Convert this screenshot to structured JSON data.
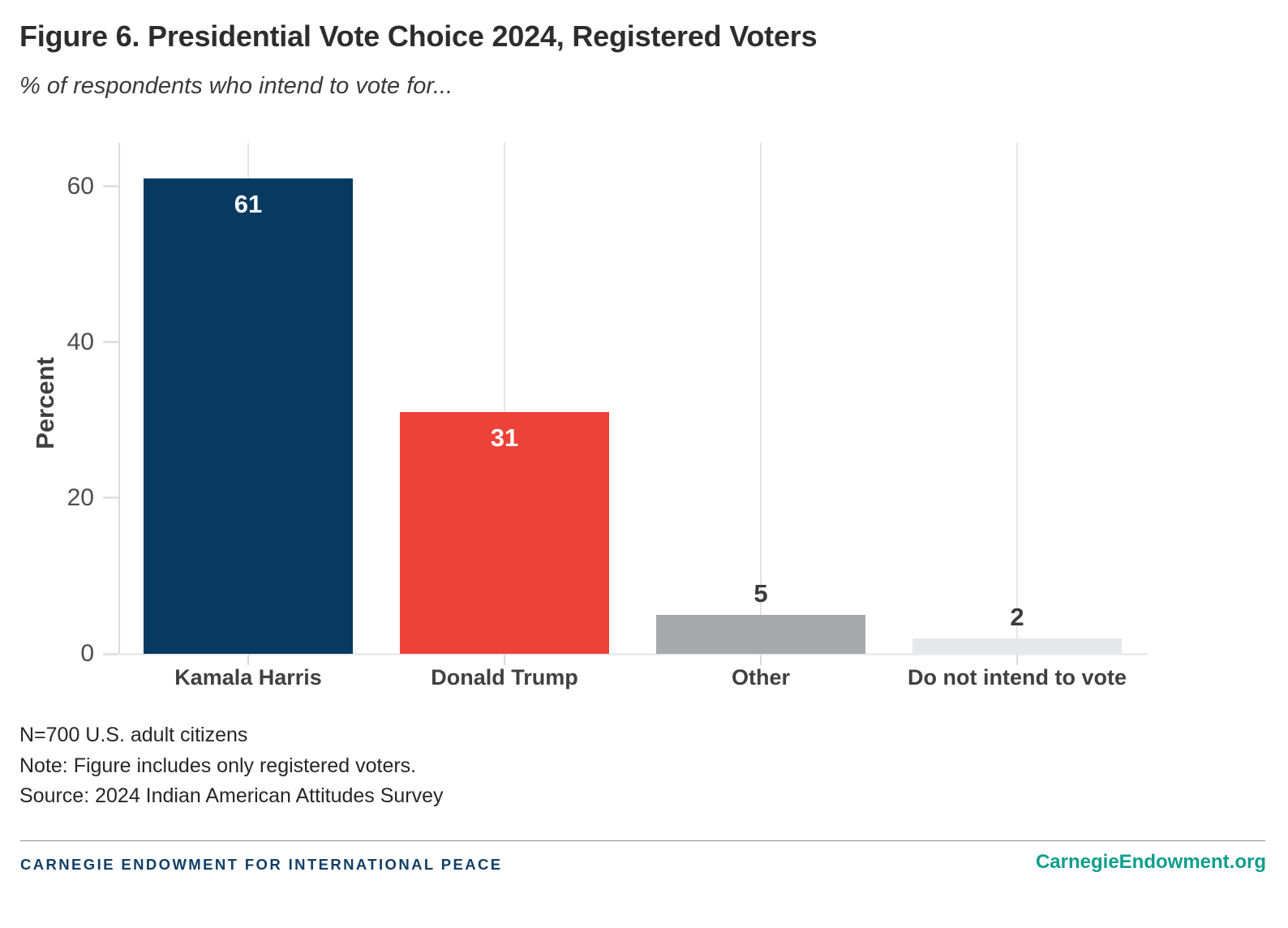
{
  "header": {
    "title": "Figure 6. Presidential Vote Choice 2024, Registered Voters",
    "subtitle": "% of respondents who intend to vote for..."
  },
  "chart_data": {
    "type": "bar",
    "title": "Figure 6. Presidential Vote Choice 2024, Registered Voters",
    "subtitle": "% of respondents who intend to vote for...",
    "categories": [
      "Kamala Harris",
      "Donald Trump",
      "Other",
      "Do not intend to vote"
    ],
    "values": [
      61,
      31,
      5,
      2
    ],
    "bar_colors": [
      "#063a61",
      "#ee4137",
      "#a7a9ac",
      "#e6e7e8"
    ],
    "value_label_styles": [
      "inside-white",
      "inside-white",
      "above-dark",
      "above-dark"
    ],
    "xlabel": "",
    "ylabel": "Percent",
    "yticks": [
      0,
      20,
      40,
      60
    ],
    "ylim": [
      0,
      65.6
    ],
    "grid": "vertical gridline at each category center",
    "legend": "none"
  },
  "notes": {
    "line1": "N=700 U.S. adult citizens",
    "line2": "Note: Figure includes only registered voters.",
    "line3": "Source: 2024 Indian American Attitudes Survey"
  },
  "footer": {
    "org": "CARNEGIE ENDOWMENT FOR INTERNATIONAL PEACE",
    "site": "CarnegieEndowment.org"
  },
  "colors": {
    "harris_navy": "#063a61",
    "trump_red": "#ee4137",
    "other_gray": "#a7a9ac",
    "no_vote_lightgray": "#e6e7e8",
    "footer_navy": "#123e66",
    "footer_teal": "#0f9e8c",
    "axis_text": "#4d4d4d",
    "gridline": "#e5e5e5"
  }
}
